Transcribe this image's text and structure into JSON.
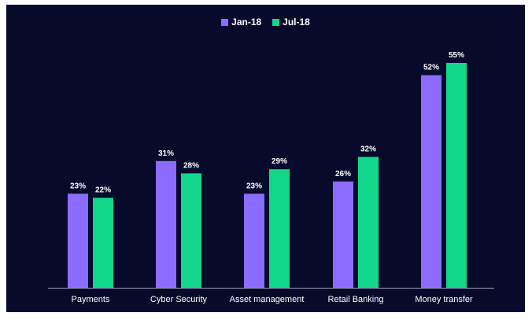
{
  "chart_data": {
    "type": "bar",
    "categories": [
      "Payments",
      "Cyber Security",
      "Asset management",
      "Retail Banking",
      "Money transfer"
    ],
    "series": [
      {
        "name": "Jan-18",
        "values": [
          23,
          31,
          23,
          26,
          52
        ],
        "labels": [
          "23%",
          "31%",
          "23%",
          "26%",
          "52%"
        ],
        "color": "#8b6cff"
      },
      {
        "name": "Jul-18",
        "values": [
          22,
          28,
          29,
          32,
          55
        ],
        "labels": [
          "22%",
          "28%",
          "29%",
          "32%",
          "55%"
        ],
        "color": "#12d68a"
      }
    ],
    "ylim": [
      0,
      60
    ],
    "grid": false,
    "legend_position": "top-center",
    "background": "#080a2c",
    "text_color": "#ffffff"
  }
}
